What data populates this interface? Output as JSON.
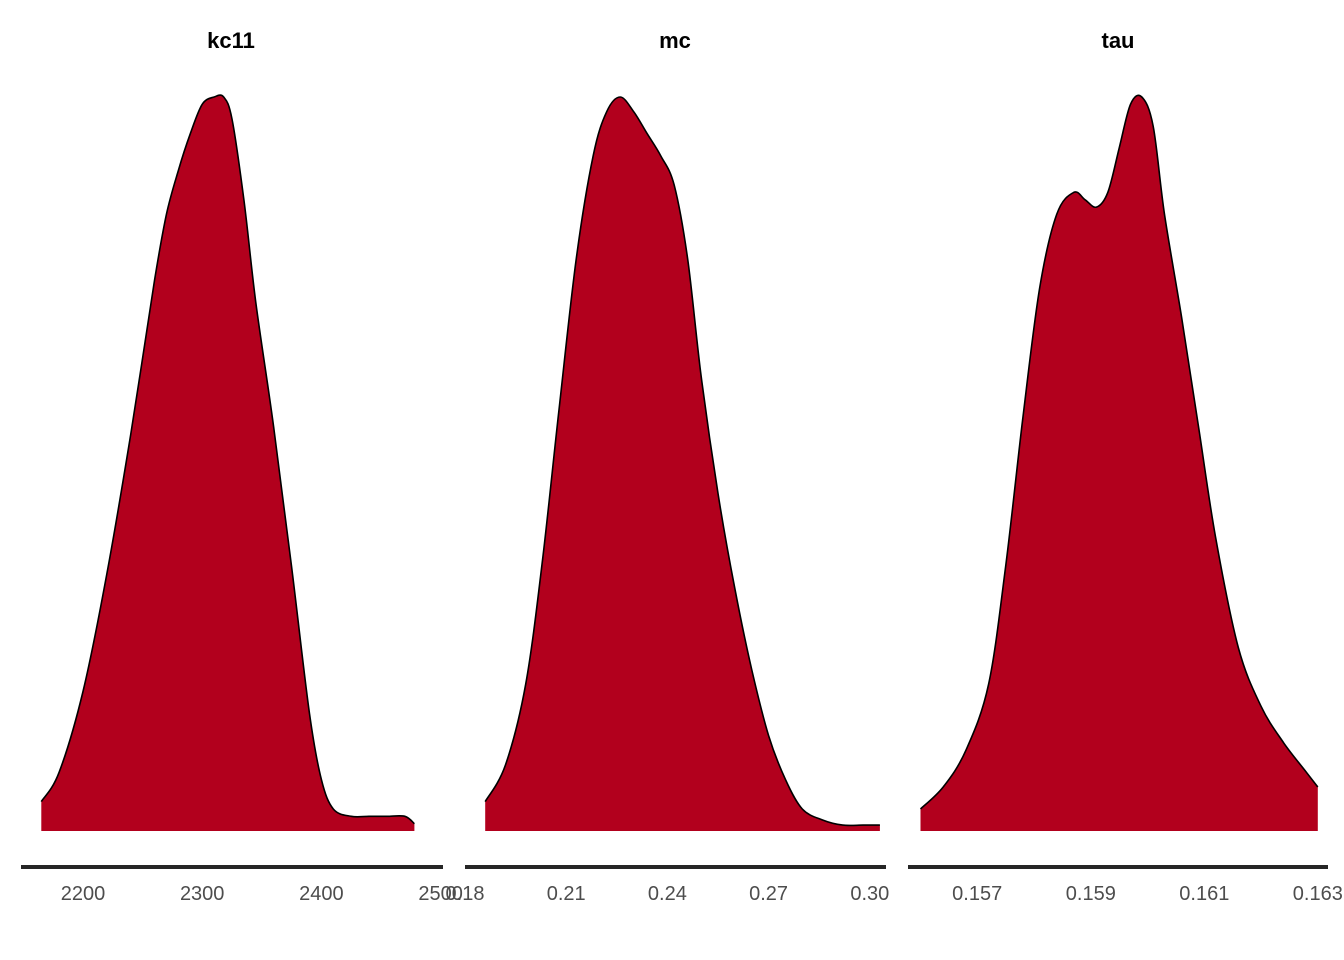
{
  "chart_data": [
    {
      "type": "area",
      "title": "kc11",
      "fill_color": "#B2001D",
      "outline_color": "#000000",
      "axis_color": "#262626",
      "grid": false,
      "xlim": [
        2148,
        2502
      ],
      "x_ticks": [
        2200,
        2300,
        2400,
        2500
      ],
      "x_tick_labels": [
        "2200",
        "2300",
        "2400",
        "2500"
      ],
      "density": {
        "x": [
          2165,
          2180,
          2200,
          2220,
          2240,
          2260,
          2270,
          2280,
          2290,
          2300,
          2310,
          2318,
          2325,
          2335,
          2345,
          2360,
          2375,
          2390,
          2400,
          2410,
          2425,
          2440,
          2455,
          2470,
          2478
        ],
        "y": [
          0.04,
          0.08,
          0.19,
          0.35,
          0.54,
          0.75,
          0.84,
          0.9,
          0.95,
          0.99,
          1.0,
          1.0,
          0.97,
          0.86,
          0.72,
          0.55,
          0.36,
          0.16,
          0.07,
          0.03,
          0.02,
          0.02,
          0.02,
          0.02,
          0.01
        ]
      }
    },
    {
      "type": "area",
      "title": "mc",
      "fill_color": "#B2001D",
      "outline_color": "#000000",
      "axis_color": "#262626",
      "grid": false,
      "xlim": [
        0.18,
        0.3048
      ],
      "x_ticks": [
        0.18,
        0.21,
        0.24,
        0.27,
        0.3
      ],
      "x_tick_labels": [
        "0.18",
        "0.21",
        "0.24",
        "0.27",
        "0.30"
      ],
      "density": {
        "x": [
          0.186,
          0.192,
          0.198,
          0.203,
          0.208,
          0.213,
          0.218,
          0.222,
          0.226,
          0.23,
          0.234,
          0.238,
          0.242,
          0.246,
          0.25,
          0.255,
          0.26,
          0.265,
          0.27,
          0.275,
          0.28,
          0.286,
          0.292,
          0.298,
          0.303
        ],
        "y": [
          0.04,
          0.09,
          0.2,
          0.37,
          0.58,
          0.78,
          0.92,
          0.98,
          1.0,
          0.98,
          0.95,
          0.92,
          0.88,
          0.78,
          0.62,
          0.46,
          0.33,
          0.22,
          0.13,
          0.07,
          0.03,
          0.015,
          0.008,
          0.008,
          0.008
        ]
      }
    },
    {
      "type": "area",
      "title": "tau",
      "fill_color": "#B2001D",
      "outline_color": "#000000",
      "axis_color": "#262626",
      "grid": false,
      "xlim": [
        0.15578,
        0.16318
      ],
      "x_ticks": [
        0.157,
        0.159,
        0.161,
        0.163
      ],
      "x_tick_labels": [
        "0.157",
        "0.159",
        "0.161",
        "0.163"
      ],
      "density": {
        "x": [
          0.156,
          0.1564,
          0.1568,
          0.1572,
          0.1575,
          0.1578,
          0.1581,
          0.1584,
          0.1587,
          0.1589,
          0.1591,
          0.1593,
          0.1595,
          0.1597,
          0.1599,
          0.1601,
          0.1603,
          0.1606,
          0.1609,
          0.1612,
          0.1616,
          0.162,
          0.1624,
          0.1628,
          0.163
        ],
        "y": [
          0.03,
          0.06,
          0.11,
          0.2,
          0.36,
          0.56,
          0.74,
          0.84,
          0.87,
          0.86,
          0.85,
          0.87,
          0.93,
          0.99,
          1.0,
          0.96,
          0.84,
          0.7,
          0.55,
          0.4,
          0.25,
          0.17,
          0.12,
          0.08,
          0.06
        ]
      }
    }
  ]
}
